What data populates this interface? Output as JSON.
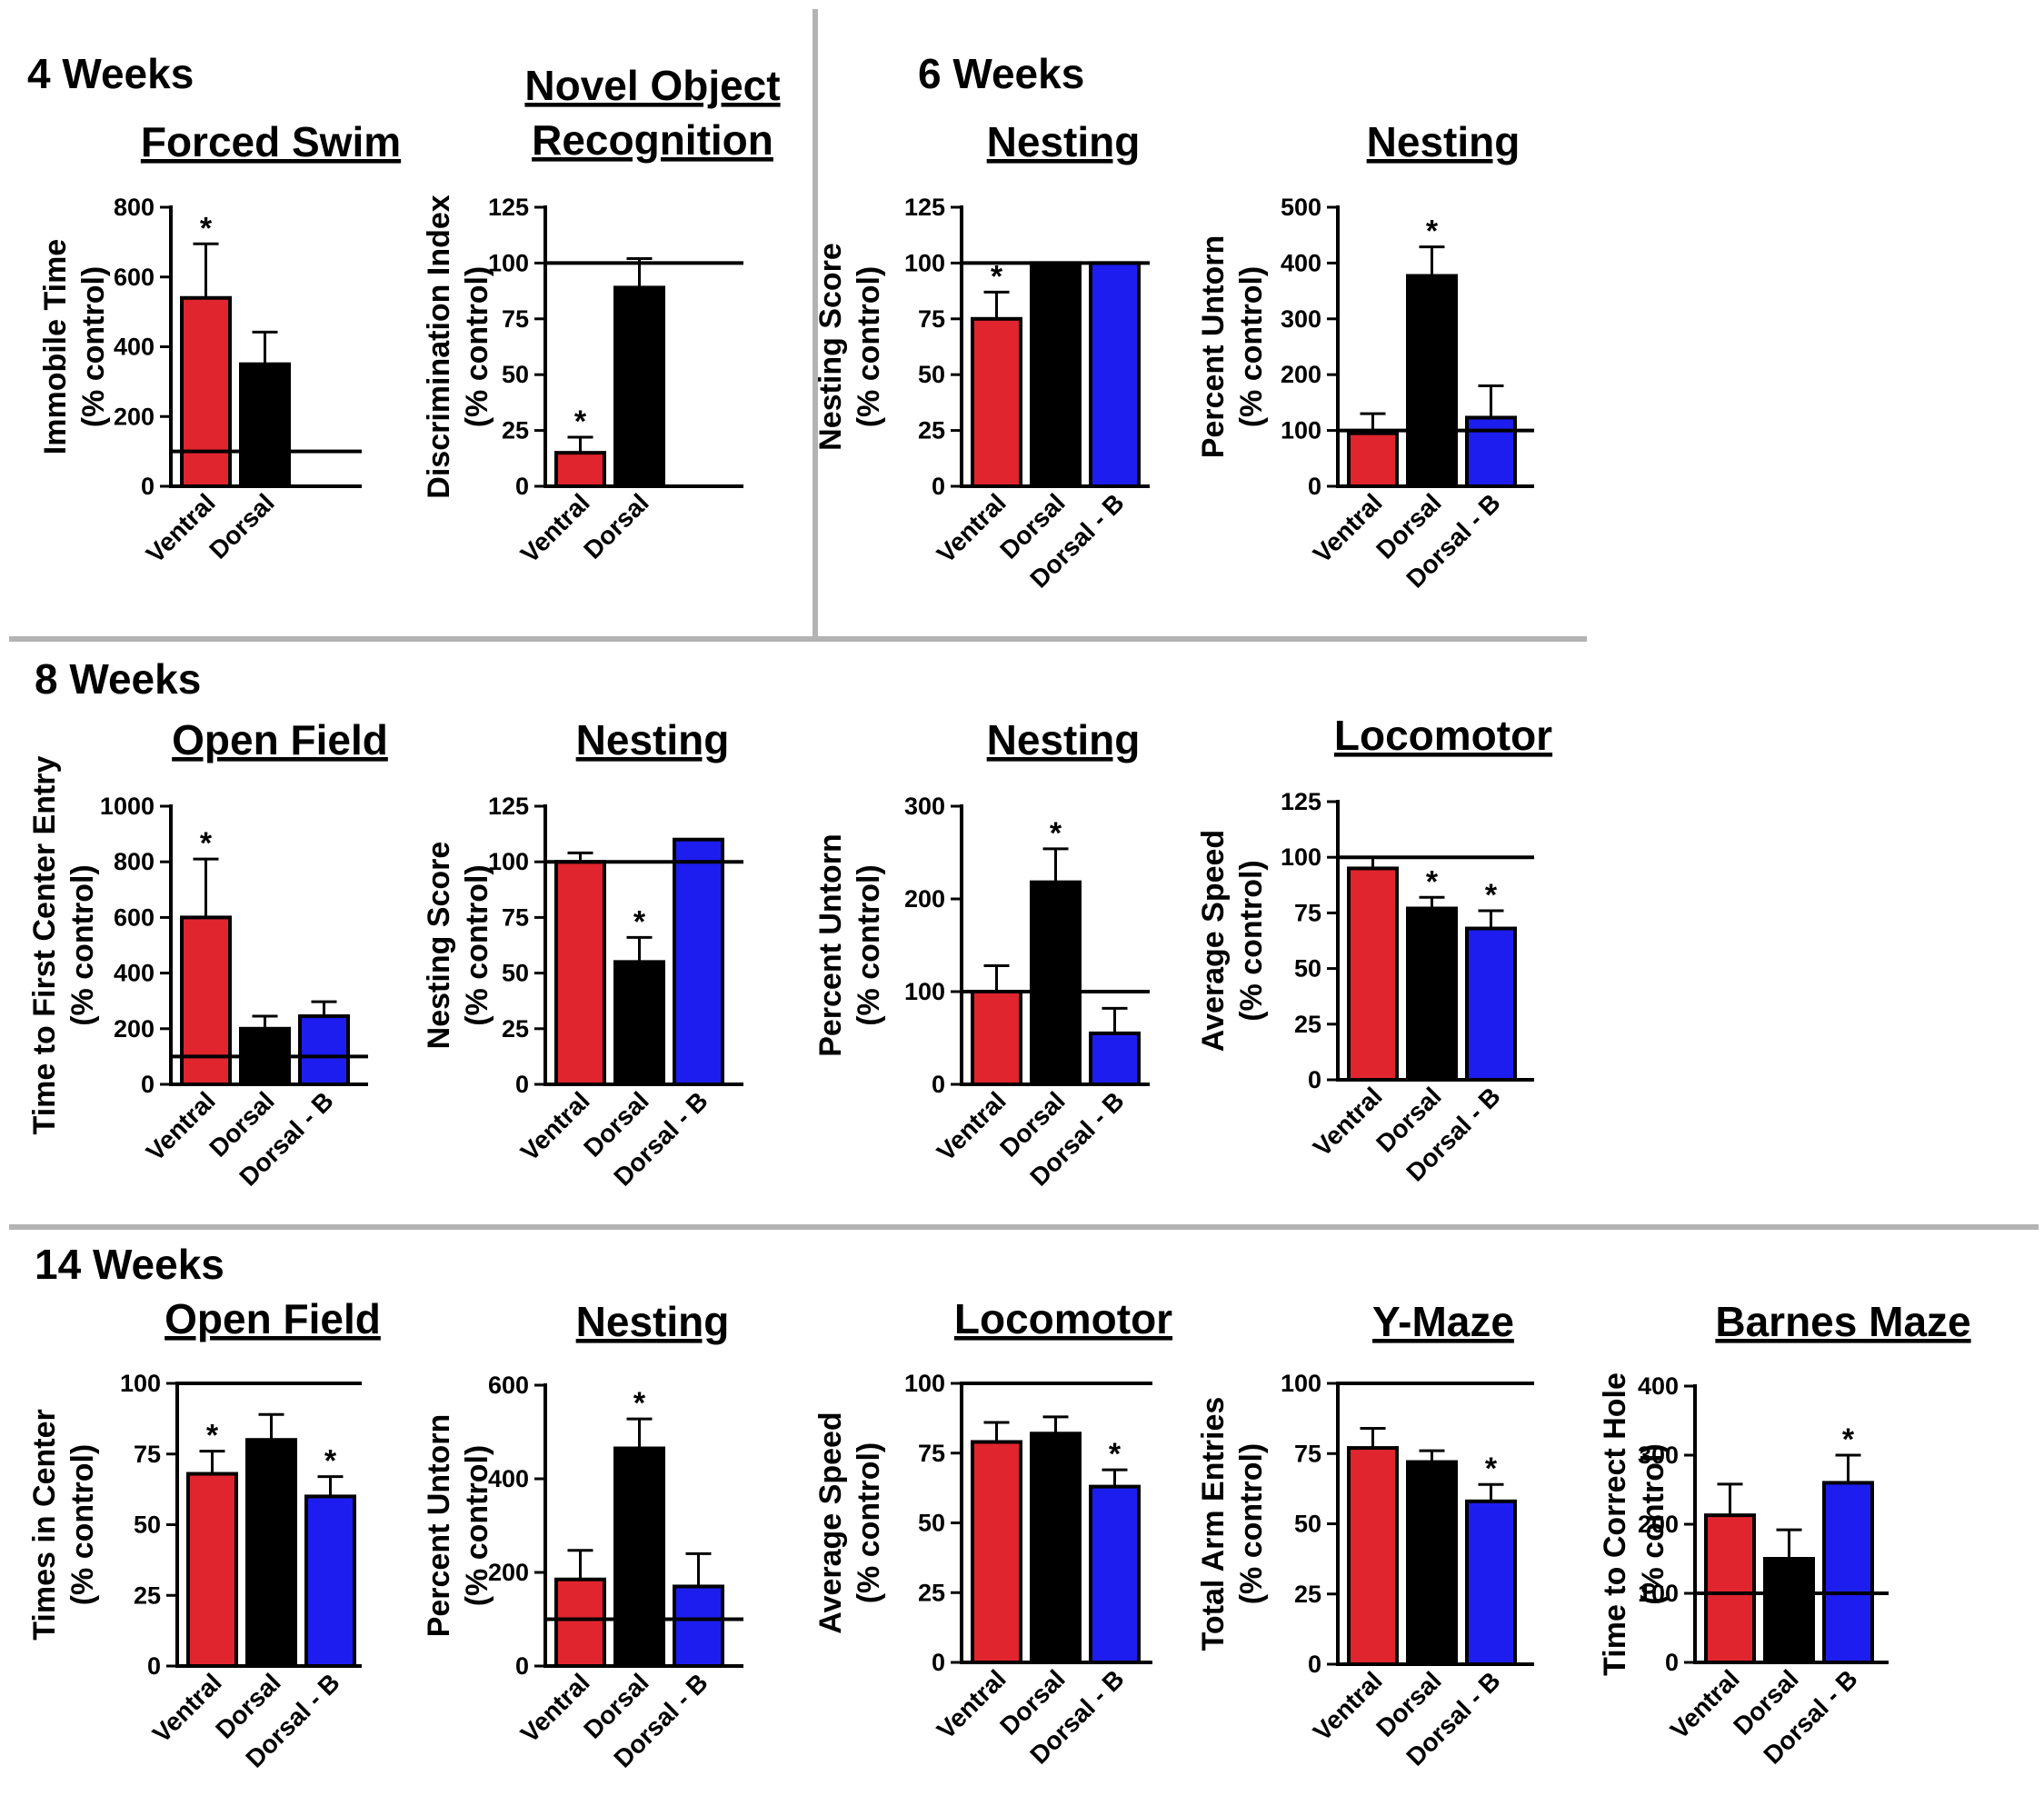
{
  "colors": {
    "Ventral": "#e1252e",
    "Dorsal": "#000000",
    "Dorsal - B": "#1d1df0",
    "divider": "#b3b3b3"
  },
  "sections": [
    {
      "id": "sec-4",
      "title": "4 Weeks"
    },
    {
      "id": "sec-6",
      "title": "6 Weeks"
    },
    {
      "id": "sec-8",
      "title": "8 Weeks"
    },
    {
      "id": "sec-14",
      "title": "14 Weeks"
    }
  ],
  "chart_data": [
    {
      "id": "c1",
      "section": "4 Weeks",
      "type": "bar",
      "title": [
        "Forced Swim"
      ],
      "ylabel": [
        "Immobile Time",
        "(% control)"
      ],
      "ylim": [
        0,
        800
      ],
      "yticks": [
        0,
        200,
        400,
        600,
        800
      ],
      "reference_line": 100,
      "categories": [
        "Ventral",
        "Dorsal"
      ],
      "values": [
        540,
        350
      ],
      "errors": [
        155,
        92
      ],
      "significant": [
        true,
        false
      ]
    },
    {
      "id": "c2",
      "section": "4 Weeks",
      "type": "bar",
      "title": [
        "Novel Object",
        "Recognition"
      ],
      "ylabel": [
        "Discrimination Index",
        "(% control)"
      ],
      "ylim": [
        0,
        125
      ],
      "yticks": [
        0,
        25,
        50,
        75,
        100,
        125
      ],
      "reference_line": 100,
      "categories": [
        "Ventral",
        "Dorsal"
      ],
      "values": [
        15,
        89
      ],
      "errors": [
        7,
        13
      ],
      "significant": [
        true,
        false
      ]
    },
    {
      "id": "c3",
      "section": "6 Weeks",
      "type": "bar",
      "title": [
        "Nesting"
      ],
      "ylabel": [
        "Nesting Score",
        "(% control)"
      ],
      "ylim": [
        0,
        125
      ],
      "yticks": [
        0,
        25,
        50,
        75,
        100,
        125
      ],
      "reference_line": 100,
      "categories": [
        "Ventral",
        "Dorsal",
        "Dorsal - B"
      ],
      "values": [
        75,
        100,
        100
      ],
      "errors": [
        12,
        0,
        0
      ],
      "significant": [
        true,
        false,
        false
      ]
    },
    {
      "id": "c4",
      "section": "6 Weeks",
      "type": "bar",
      "title": [
        "Nesting"
      ],
      "ylabel": [
        "Percent Untorn",
        "(% control)"
      ],
      "ylim": [
        0,
        500
      ],
      "yticks": [
        0,
        100,
        200,
        300,
        400,
        500
      ],
      "reference_line": 100,
      "categories": [
        "Ventral",
        "Dorsal",
        "Dorsal - B"
      ],
      "values": [
        95,
        377,
        123
      ],
      "errors": [
        35,
        52,
        57
      ],
      "significant": [
        false,
        true,
        false
      ]
    },
    {
      "id": "c5",
      "section": "8 Weeks",
      "type": "bar",
      "title": [
        "Open Field"
      ],
      "ylabel": [
        "Time to First Center Entry",
        "(% control)"
      ],
      "ylim": [
        0,
        1000
      ],
      "yticks": [
        0,
        200,
        400,
        600,
        800,
        1000
      ],
      "reference_line": 100,
      "categories": [
        "Ventral",
        "Dorsal",
        "Dorsal - B"
      ],
      "values": [
        600,
        200,
        245
      ],
      "errors": [
        210,
        45,
        52
      ],
      "significant": [
        true,
        false,
        false
      ]
    },
    {
      "id": "c6",
      "section": "8 Weeks",
      "type": "bar",
      "title": [
        "Nesting"
      ],
      "ylabel": [
        "Nesting Score",
        "(% control)"
      ],
      "ylim": [
        0,
        125
      ],
      "yticks": [
        0,
        25,
        50,
        75,
        100,
        125
      ],
      "reference_line": 100,
      "categories": [
        "Ventral",
        "Dorsal",
        "Dorsal - B"
      ],
      "values": [
        100,
        55,
        110
      ],
      "errors": [
        4,
        11,
        0
      ],
      "significant": [
        false,
        true,
        false
      ]
    },
    {
      "id": "c7",
      "section": "8 Weeks",
      "type": "bar",
      "title": [
        "Nesting"
      ],
      "ylabel": [
        "Percent Untorn",
        "(% control)"
      ],
      "ylim": [
        0,
        300
      ],
      "yticks": [
        0,
        100,
        200,
        300
      ],
      "reference_line": 100,
      "categories": [
        "Ventral",
        "Dorsal",
        "Dorsal - B"
      ],
      "values": [
        100,
        218,
        55
      ],
      "errors": [
        28,
        36,
        27
      ],
      "significant": [
        false,
        true,
        false
      ]
    },
    {
      "id": "c8",
      "section": "8 Weeks",
      "type": "bar",
      "title": [
        "Locomotor"
      ],
      "ylabel": [
        "Average Speed",
        "(% control)"
      ],
      "ylim": [
        0,
        125
      ],
      "yticks": [
        0,
        25,
        50,
        75,
        100,
        125
      ],
      "reference_line": 100,
      "categories": [
        "Ventral",
        "Dorsal",
        "Dorsal - B"
      ],
      "values": [
        95,
        77,
        68
      ],
      "errors": [
        5,
        5,
        8
      ],
      "significant": [
        false,
        true,
        true
      ]
    },
    {
      "id": "c9",
      "section": "14 Weeks",
      "type": "bar",
      "title": [
        "Open Field"
      ],
      "ylabel": [
        "Times in Center",
        "(% control)"
      ],
      "ylim": [
        0,
        100
      ],
      "yticks": [
        0,
        25,
        50,
        75,
        100
      ],
      "reference_line": 100,
      "categories": [
        "Ventral",
        "Dorsal",
        "Dorsal - B"
      ],
      "values": [
        68,
        80,
        60
      ],
      "errors": [
        8,
        9,
        7
      ],
      "significant": [
        true,
        false,
        true
      ]
    },
    {
      "id": "c10",
      "section": "14 Weeks",
      "type": "bar",
      "title": [
        "Nesting"
      ],
      "ylabel": [
        "Percent Untorn",
        "(% control)"
      ],
      "ylim": [
        0,
        600
      ],
      "yticks": [
        0,
        200,
        400,
        600
      ],
      "reference_line": 100,
      "categories": [
        "Ventral",
        "Dorsal",
        "Dorsal - B"
      ],
      "values": [
        185,
        465,
        170
      ],
      "errors": [
        62,
        63,
        70
      ],
      "significant": [
        false,
        true,
        false
      ]
    },
    {
      "id": "c11",
      "section": "14 Weeks",
      "type": "bar",
      "title": [
        "Locomotor"
      ],
      "ylabel": [
        "Average Speed",
        "(% control)"
      ],
      "ylim": [
        0,
        100
      ],
      "yticks": [
        0,
        25,
        50,
        75,
        100
      ],
      "reference_line": 100,
      "categories": [
        "Ventral",
        "Dorsal",
        "Dorsal - B"
      ],
      "values": [
        79,
        82,
        63
      ],
      "errors": [
        7,
        6,
        6
      ],
      "significant": [
        false,
        false,
        true
      ]
    },
    {
      "id": "c12",
      "section": "14 Weeks",
      "type": "bar",
      "title": [
        "Y-Maze"
      ],
      "ylabel": [
        "Total Arm Entries",
        "(% control)"
      ],
      "ylim": [
        0,
        100
      ],
      "yticks": [
        0,
        25,
        50,
        75,
        100
      ],
      "reference_line": 100,
      "categories": [
        "Ventral",
        "Dorsal",
        "Dorsal - B"
      ],
      "values": [
        77,
        72,
        58
      ],
      "errors": [
        7,
        4,
        6
      ],
      "significant": [
        false,
        false,
        true
      ]
    },
    {
      "id": "c13",
      "section": "14 Weeks",
      "type": "bar",
      "title": [
        "Barnes Maze"
      ],
      "ylabel": [
        "Time to Correct Hole",
        "(% control)"
      ],
      "ylim": [
        0,
        400
      ],
      "yticks": [
        0,
        100,
        200,
        300,
        400
      ],
      "reference_line": 100,
      "categories": [
        "Ventral",
        "Dorsal",
        "Dorsal - B"
      ],
      "values": [
        213,
        150,
        260
      ],
      "errors": [
        45,
        42,
        40
      ],
      "significant": [
        false,
        false,
        true
      ]
    }
  ],
  "significance_marker": "*"
}
